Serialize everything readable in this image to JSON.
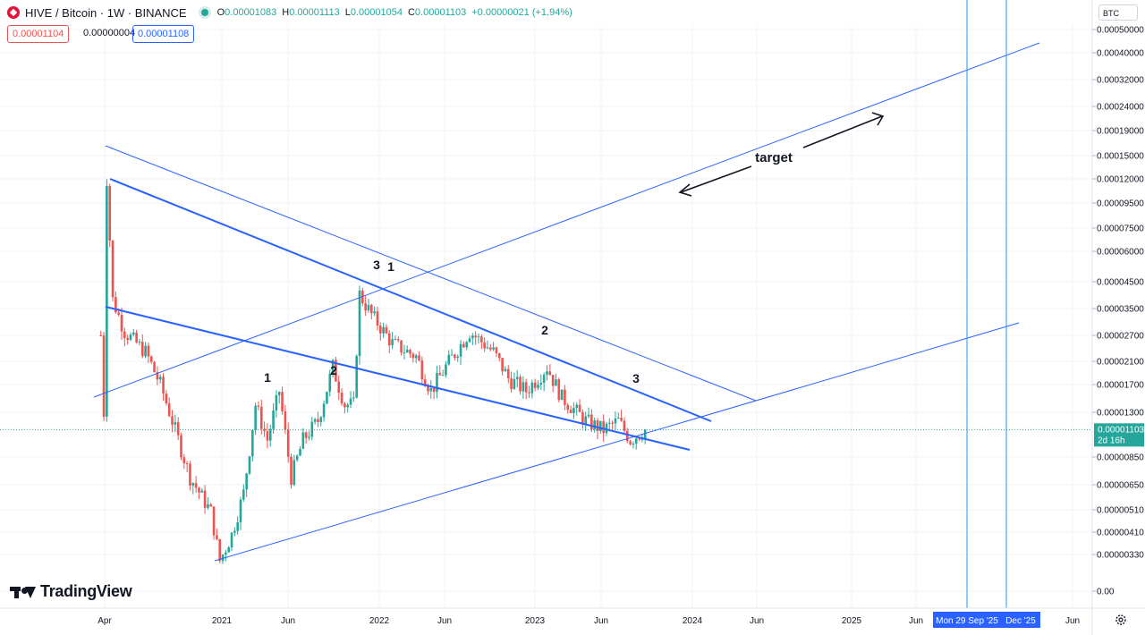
{
  "header": {
    "symbol": "HIVE / Bitcoin · 1W · BINANCE",
    "open": "0.00001083",
    "high": "0.00001113",
    "low": "0.00001054",
    "close": "0.00001103",
    "change": "+0.00000021 (+1.94%)",
    "open_label": "O",
    "high_label": "H",
    "low_label": "L",
    "close_label": "C"
  },
  "trade": {
    "bid": "0.00001104",
    "spread": "0.00000004",
    "ask": "0.00001108"
  },
  "currency_button": "BTC",
  "brand": "TradingView",
  "colors": {
    "up": "#26a69a",
    "down": "#ef5350",
    "drawing": "#2962ff",
    "axis_text": "#131722"
  },
  "chart_data": {
    "type": "candlestick",
    "symbol": "HIVE / Bitcoin",
    "interval": "1W",
    "exchange": "BINANCE",
    "y_scale": "log",
    "y_ticks": [
      "0.00050000",
      "0.00040000",
      "0.00032000",
      "0.00024000",
      "0.00019000",
      "0.00015000",
      "0.00012000",
      "0.00009500",
      "0.00007500",
      "0.00006000",
      "0.00004500",
      "0.00003500",
      "0.00002700",
      "0.00002100",
      "0.00001700",
      "0.00001300",
      "0.00000850",
      "0.00000650",
      "0.00000510",
      "0.00000410",
      "0.00000330",
      "0.00"
    ],
    "x_ticks": [
      "Apr",
      "2021",
      "Jun",
      "2022",
      "Jun",
      "2023",
      "Jun",
      "2024",
      "Jun",
      "2025",
      "Jun",
      "Jun"
    ],
    "last_price": "0.00001103",
    "countdown": "2d 16h",
    "date_markers": [
      "Mon 29 Sep '25",
      "Dec '25"
    ],
    "series_path": [
      [
        "2020-03-23",
        2.7e-05
      ],
      [
        "2020-03-30",
        1.3e-05
      ],
      [
        "2020-04-06",
        0.00012
      ],
      [
        "2020-04-20",
        3.8e-05
      ],
      [
        "2020-05-18",
        2.8e-05
      ],
      [
        "2020-07-06",
        2.3e-05
      ],
      [
        "2020-08-10",
        1.7e-05
      ],
      [
        "2020-09-14",
        1.1e-05
      ],
      [
        "2020-10-19",
        7e-06
      ],
      [
        "2020-12-07",
        5e-06
      ],
      [
        "2020-12-28",
        3.1e-06
      ],
      [
        "2021-01-25",
        4e-06
      ],
      [
        "2021-02-22",
        6e-06
      ],
      [
        "2021-03-22",
        1.4e-05
      ],
      [
        "2021-04-19",
        1e-05
      ],
      [
        "2021-05-17",
        1.6e-05
      ],
      [
        "2021-06-14",
        7e-06
      ],
      [
        "2021-07-12",
        1e-05
      ],
      [
        "2021-08-16",
        1.2e-05
      ],
      [
        "2021-09-20",
        2e-05
      ],
      [
        "2021-10-18",
        1.4e-05
      ],
      [
        "2021-11-08",
        1.4e-05
      ],
      [
        "2021-11-22",
        4e-05
      ],
      [
        "2021-12-20",
        3.3e-05
      ],
      [
        "2022-02-07",
        2.5e-05
      ],
      [
        "2022-04-04",
        2.2e-05
      ],
      [
        "2022-05-09",
        1.6e-05
      ],
      [
        "2022-06-13",
        2e-05
      ],
      [
        "2022-08-08",
        2.8e-05
      ],
      [
        "2022-10-03",
        2.3e-05
      ],
      [
        "2022-11-07",
        1.8e-05
      ],
      [
        "2022-12-19",
        1.6e-05
      ],
      [
        "2023-02-06",
        2e-05
      ],
      [
        "2023-03-13",
        1.5e-05
      ],
      [
        "2023-05-08",
        1.2e-05
      ],
      [
        "2023-06-19",
        1.1e-05
      ],
      [
        "2023-07-24",
        1.2e-05
      ],
      [
        "2023-08-21",
        1e-05
      ],
      [
        "2023-09-25",
        1.1e-05
      ]
    ],
    "annotations": [
      {
        "text": "target",
        "kind": "label"
      },
      {
        "text": "1"
      },
      {
        "text": "2"
      },
      {
        "text": "3"
      },
      {
        "text": "1"
      },
      {
        "text": "3"
      },
      {
        "text": "2"
      },
      {
        "text": "3"
      }
    ]
  }
}
